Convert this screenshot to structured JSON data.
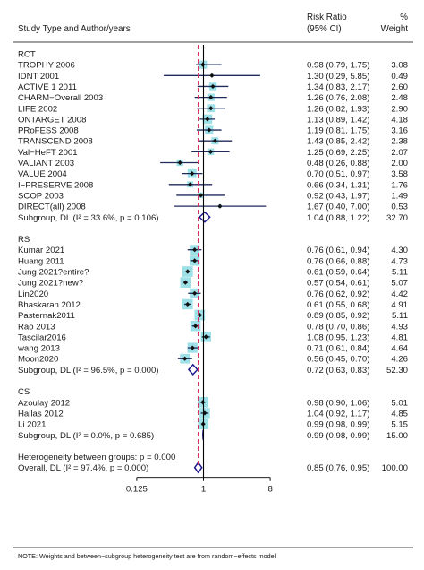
{
  "chart_data": {
    "type": "forest",
    "header": {
      "study_col": "Study Type and Author/years",
      "rr_col_line1": "Risk Ratio",
      "rr_col_line2": "(95% CI)",
      "weight_col_line1": "%",
      "weight_col_line2": "Weight"
    },
    "x_scale": "log2",
    "xlim": [
      0.05,
      16
    ],
    "ticks": [
      {
        "value": 0.125,
        "label": "0.125"
      },
      {
        "value": 1,
        "label": "1"
      },
      {
        "value": 8,
        "label": "8"
      }
    ],
    "null_value": 1,
    "overall_value": 0.85,
    "groups": [
      {
        "name": "RCT",
        "studies": [
          {
            "label": "TROPHY 2006",
            "rr": 0.98,
            "lo": 0.79,
            "hi": 1.75,
            "ci_text": "0.98 (0.79, 1.75)",
            "weight": "3.08"
          },
          {
            "label": "IDNT 2001",
            "rr": 1.3,
            "lo": 0.29,
            "hi": 5.85,
            "ci_text": "1.30 (0.29, 5.85)",
            "weight": "0.49"
          },
          {
            "label": "ACTIVE 1 2011",
            "rr": 1.34,
            "lo": 0.83,
            "hi": 2.17,
            "ci_text": "1.34 (0.83, 2.17)",
            "weight": "2.60"
          },
          {
            "label": "CHARM−Overall 2003",
            "rr": 1.26,
            "lo": 0.76,
            "hi": 2.08,
            "ci_text": "1.26 (0.76, 2.08)",
            "weight": "2.48"
          },
          {
            "label": "LIFE 2002",
            "rr": 1.26,
            "lo": 0.82,
            "hi": 1.93,
            "ci_text": "1.26 (0.82, 1.93)",
            "weight": "2.90"
          },
          {
            "label": "ONTARGET 2008",
            "rr": 1.13,
            "lo": 0.89,
            "hi": 1.42,
            "ci_text": "1.13 (0.89, 1.42)",
            "weight": "4.18"
          },
          {
            "label": "PRoFESS 2008",
            "rr": 1.19,
            "lo": 0.81,
            "hi": 1.75,
            "ci_text": "1.19 (0.81, 1.75)",
            "weight": "3.16"
          },
          {
            "label": "TRANSCEND 2008",
            "rr": 1.43,
            "lo": 0.85,
            "hi": 2.42,
            "ci_text": "1.43 (0.85, 2.42)",
            "weight": "2.38"
          },
          {
            "label": "Val−HeFT 2001",
            "rr": 1.25,
            "lo": 0.69,
            "hi": 2.25,
            "ci_text": "1.25 (0.69, 2.25)",
            "weight": "2.07"
          },
          {
            "label": "VALIANT 2003",
            "rr": 0.48,
            "lo": 0.26,
            "hi": 0.88,
            "ci_text": "0.48 (0.26, 0.88)",
            "weight": "2.00"
          },
          {
            "label": "VALUE 2004",
            "rr": 0.7,
            "lo": 0.51,
            "hi": 0.97,
            "ci_text": "0.70 (0.51, 0.97)",
            "weight": "3.58"
          },
          {
            "label": "I−PRESERVE 2008",
            "rr": 0.66,
            "lo": 0.34,
            "hi": 1.31,
            "ci_text": "0.66 (0.34, 1.31)",
            "weight": "1.76"
          },
          {
            "label": "SCOP 2003",
            "rr": 0.92,
            "lo": 0.43,
            "hi": 1.97,
            "ci_text": "0.92 (0.43, 1.97)",
            "weight": "1.49"
          },
          {
            "label": "DIRECT(all) 2008",
            "rr": 1.67,
            "lo": 0.4,
            "hi": 7.0,
            "ci_text": "1.67 (0.40, 7.00)",
            "weight": "0.53"
          }
        ],
        "subgroup": {
          "label": "Subgroup, DL (I² = 33.6%, p = 0.106)",
          "rr": 1.04,
          "lo": 0.88,
          "hi": 1.22,
          "ci_text": "1.04 (0.88, 1.22)",
          "weight": "32.70"
        }
      },
      {
        "name": "RS",
        "studies": [
          {
            "label": "Kumar 2021",
            "rr": 0.76,
            "lo": 0.61,
            "hi": 0.94,
            "ci_text": "0.76 (0.61, 0.94)",
            "weight": "4.30"
          },
          {
            "label": "Huang 2011",
            "rr": 0.76,
            "lo": 0.66,
            "hi": 0.88,
            "ci_text": "0.76 (0.66, 0.88)",
            "weight": "4.73"
          },
          {
            "label": "Jung 2021?entire?",
            "rr": 0.61,
            "lo": 0.59,
            "hi": 0.64,
            "ci_text": "0.61 (0.59, 0.64)",
            "weight": "5.11"
          },
          {
            "label": "Jung 2021?new?",
            "rr": 0.57,
            "lo": 0.54,
            "hi": 0.61,
            "ci_text": "0.57 (0.54, 0.61)",
            "weight": "5.07"
          },
          {
            "label": "Lin2020",
            "rr": 0.76,
            "lo": 0.62,
            "hi": 0.92,
            "ci_text": "0.76 (0.62, 0.92)",
            "weight": "4.42"
          },
          {
            "label": "Bhaskaran 2012",
            "rr": 0.61,
            "lo": 0.55,
            "hi": 0.68,
            "ci_text": "0.61 (0.55, 0.68)",
            "weight": "4.91"
          },
          {
            "label": "Pasternak2011",
            "rr": 0.89,
            "lo": 0.85,
            "hi": 0.92,
            "ci_text": "0.89 (0.85, 0.92)",
            "weight": "5.11"
          },
          {
            "label": "Rao 2013",
            "rr": 0.78,
            "lo": 0.7,
            "hi": 0.86,
            "ci_text": "0.78 (0.70, 0.86)",
            "weight": "4.93"
          },
          {
            "label": "Tascilar2016",
            "rr": 1.08,
            "lo": 0.95,
            "hi": 1.23,
            "ci_text": "1.08 (0.95, 1.23)",
            "weight": "4.81"
          },
          {
            "label": "wang 2013",
            "rr": 0.71,
            "lo": 0.61,
            "hi": 0.84,
            "ci_text": "0.71 (0.61, 0.84)",
            "weight": "4.64"
          },
          {
            "label": "Moon2020",
            "rr": 0.56,
            "lo": 0.45,
            "hi": 0.7,
            "ci_text": "0.56 (0.45, 0.70)",
            "weight": "4.26"
          }
        ],
        "subgroup": {
          "label": "Subgroup, DL (I² = 96.5%, p = 0.000)",
          "rr": 0.72,
          "lo": 0.63,
          "hi": 0.83,
          "ci_text": "0.72 (0.63, 0.83)",
          "weight": "52.30"
        }
      },
      {
        "name": "CS",
        "studies": [
          {
            "label": "Azoulay 2012",
            "rr": 0.98,
            "lo": 0.9,
            "hi": 1.06,
            "ci_text": "0.98 (0.90, 1.06)",
            "weight": "5.01"
          },
          {
            "label": "Hallas 2012",
            "rr": 1.04,
            "lo": 0.92,
            "hi": 1.17,
            "ci_text": "1.04 (0.92, 1.17)",
            "weight": "4.85"
          },
          {
            "label": "Li 2021",
            "rr": 0.99,
            "lo": 0.98,
            "hi": 0.99,
            "ci_text": "0.99 (0.98, 0.99)",
            "weight": "5.15"
          }
        ],
        "subgroup": {
          "label": "Subgroup, DL (I² = 0.0%, p = 0.685)",
          "rr": 0.99,
          "lo": 0.98,
          "hi": 0.99,
          "ci_text": "0.99 (0.98, 0.99)",
          "weight": "15.00"
        }
      }
    ],
    "heterogeneity_text": "Heterogeneity between groups: p = 0.000",
    "overall": {
      "label": "Overall, DL (I² = 97.4%, p = 0.000)",
      "rr": 0.85,
      "lo": 0.76,
      "hi": 0.95,
      "ci_text": "0.85 (0.76, 0.95)",
      "weight": "100.00"
    },
    "note": "NOTE: Weights and between−subgroup heterogeneity test are from random−effects model"
  },
  "colors": {
    "ci_line": "#1f2b5c",
    "point": "#111111",
    "weight_box": "#9ee0e8",
    "diamond": "#1f1a8c",
    "overall_line": "#d6335f",
    "axis": "#000000"
  }
}
